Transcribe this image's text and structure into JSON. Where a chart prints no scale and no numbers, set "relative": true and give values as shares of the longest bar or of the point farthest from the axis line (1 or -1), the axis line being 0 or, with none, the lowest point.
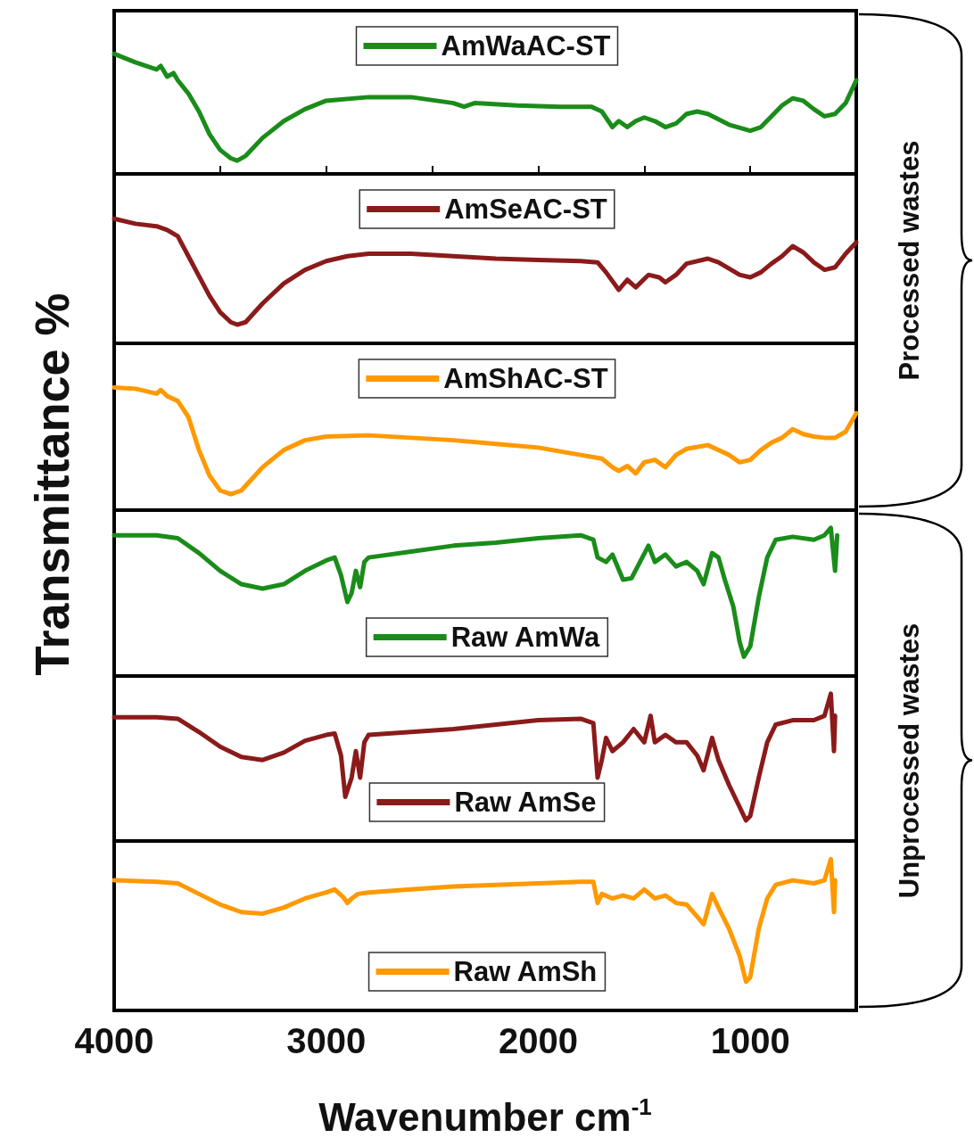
{
  "chart_data": [
    {
      "type": "line",
      "relative": true,
      "ylabel": "Transmittance %",
      "legend": "top",
      "tick_labels": false,
      "xlim": [
        4000,
        500
      ],
      "xticks": [
        {
          "value": 3500,
          "label": null
        },
        {
          "value": 3000,
          "label": null
        },
        {
          "value": 2500,
          "label": null
        },
        {
          "value": 2000,
          "label": null
        },
        {
          "value": 1500,
          "label": null
        },
        {
          "value": 1000,
          "label": null
        }
      ],
      "x": [
        4000,
        3900,
        3800,
        3780,
        3750,
        3720,
        3700,
        3650,
        3600,
        3550,
        3500,
        3450,
        3420,
        3380,
        3300,
        3200,
        3100,
        3000,
        2800,
        2600,
        2400,
        2350,
        2300,
        2100,
        1900,
        1750,
        1700,
        1650,
        1620,
        1580,
        1540,
        1500,
        1450,
        1400,
        1350,
        1300,
        1250,
        1200,
        1100,
        1000,
        950,
        900,
        850,
        800,
        750,
        700,
        650,
        600,
        550,
        500
      ],
      "series": [
        {
          "name": "AmWaAC-ST",
          "color": "#1a8c1a",
          "values": [
            1.0,
            0.93,
            0.87,
            0.9,
            0.81,
            0.84,
            0.78,
            0.67,
            0.52,
            0.33,
            0.2,
            0.13,
            0.11,
            0.15,
            0.3,
            0.44,
            0.54,
            0.61,
            0.64,
            0.64,
            0.59,
            0.56,
            0.59,
            0.57,
            0.56,
            0.56,
            0.52,
            0.39,
            0.44,
            0.39,
            0.44,
            0.47,
            0.44,
            0.39,
            0.42,
            0.5,
            0.52,
            0.5,
            0.41,
            0.36,
            0.39,
            0.48,
            0.57,
            0.63,
            0.61,
            0.54,
            0.48,
            0.5,
            0.59,
            0.78
          ]
        }
      ]
    },
    {
      "type": "line",
      "relative": true,
      "legend": "top",
      "tick_labels": false,
      "xlim": [
        4000,
        500
      ],
      "annotations": [
        "Processed wastes"
      ],
      "x": [
        4000,
        3900,
        3800,
        3750,
        3700,
        3650,
        3600,
        3550,
        3500,
        3450,
        3420,
        3380,
        3300,
        3200,
        3100,
        3000,
        2900,
        2800,
        2600,
        2400,
        2200,
        2000,
        1800,
        1720,
        1680,
        1620,
        1580,
        1540,
        1480,
        1430,
        1400,
        1350,
        1300,
        1200,
        1150,
        1050,
        1000,
        950,
        900,
        850,
        800,
        750,
        700,
        650,
        600,
        550,
        500
      ],
      "series": [
        {
          "name": "AmSeAC-ST",
          "color": "#8b1a1a",
          "values": [
            1.0,
            0.96,
            0.94,
            0.91,
            0.86,
            0.7,
            0.54,
            0.38,
            0.25,
            0.17,
            0.15,
            0.17,
            0.32,
            0.48,
            0.59,
            0.66,
            0.7,
            0.72,
            0.72,
            0.7,
            0.68,
            0.67,
            0.66,
            0.65,
            0.57,
            0.43,
            0.51,
            0.45,
            0.55,
            0.53,
            0.49,
            0.55,
            0.64,
            0.68,
            0.65,
            0.55,
            0.53,
            0.57,
            0.64,
            0.7,
            0.78,
            0.73,
            0.65,
            0.59,
            0.61,
            0.72,
            0.81
          ]
        }
      ]
    },
    {
      "type": "line",
      "relative": true,
      "legend": "top",
      "tick_labels": false,
      "xlim": [
        4000,
        500
      ],
      "x": [
        4000,
        3900,
        3850,
        3800,
        3780,
        3750,
        3700,
        3650,
        3600,
        3550,
        3500,
        3450,
        3400,
        3300,
        3200,
        3100,
        3000,
        2800,
        2600,
        2400,
        2200,
        2000,
        1800,
        1700,
        1650,
        1620,
        1580,
        1540,
        1500,
        1450,
        1400,
        1350,
        1300,
        1200,
        1100,
        1050,
        1000,
        950,
        900,
        850,
        800,
        750,
        700,
        650,
        600,
        550,
        500
      ],
      "series": [
        {
          "name": "AmShAC-ST",
          "color": "#ff9900",
          "values": [
            1.0,
            0.99,
            0.97,
            0.95,
            0.98,
            0.93,
            0.89,
            0.76,
            0.49,
            0.28,
            0.16,
            0.13,
            0.16,
            0.35,
            0.49,
            0.57,
            0.6,
            0.61,
            0.59,
            0.57,
            0.54,
            0.51,
            0.45,
            0.42,
            0.35,
            0.32,
            0.36,
            0.3,
            0.39,
            0.41,
            0.35,
            0.45,
            0.5,
            0.53,
            0.45,
            0.39,
            0.41,
            0.49,
            0.55,
            0.59,
            0.66,
            0.62,
            0.6,
            0.59,
            0.59,
            0.64,
            0.79
          ]
        }
      ]
    },
    {
      "type": "line",
      "relative": true,
      "legend": "bottom",
      "tick_labels": false,
      "xlim": [
        4000,
        500
      ],
      "x": [
        4000,
        3800,
        3700,
        3600,
        3500,
        3400,
        3300,
        3200,
        3100,
        3000,
        2960,
        2930,
        2900,
        2880,
        2860,
        2840,
        2820,
        2800,
        2600,
        2400,
        2200,
        2000,
        1800,
        1740,
        1720,
        1680,
        1650,
        1600,
        1560,
        1520,
        1480,
        1450,
        1400,
        1350,
        1300,
        1250,
        1220,
        1180,
        1150,
        1120,
        1080,
        1050,
        1030,
        1000,
        960,
        920,
        880,
        800,
        700,
        650,
        620,
        600,
        590
      ],
      "series": [
        {
          "name": "Raw AmWa",
          "color": "#1a8c1a",
          "values": [
            0.95,
            0.95,
            0.93,
            0.83,
            0.71,
            0.62,
            0.59,
            0.62,
            0.71,
            0.78,
            0.8,
            0.68,
            0.5,
            0.56,
            0.71,
            0.6,
            0.77,
            0.8,
            0.84,
            0.88,
            0.9,
            0.93,
            0.95,
            0.92,
            0.8,
            0.77,
            0.82,
            0.65,
            0.66,
            0.77,
            0.88,
            0.77,
            0.82,
            0.74,
            0.77,
            0.71,
            0.62,
            0.83,
            0.8,
            0.65,
            0.47,
            0.23,
            0.13,
            0.2,
            0.53,
            0.8,
            0.92,
            0.94,
            0.92,
            0.95,
            1.0,
            0.71,
            0.95
          ]
        }
      ]
    },
    {
      "type": "line",
      "relative": true,
      "legend": "bottom",
      "tick_labels": false,
      "xlim": [
        4000,
        500
      ],
      "annotations": [
        "Unprocessed wastes"
      ],
      "x": [
        4000,
        3800,
        3700,
        3600,
        3500,
        3400,
        3300,
        3200,
        3100,
        3000,
        2960,
        2930,
        2910,
        2880,
        2860,
        2840,
        2820,
        2800,
        2600,
        2400,
        2200,
        2000,
        1800,
        1740,
        1720,
        1700,
        1680,
        1650,
        1600,
        1550,
        1500,
        1470,
        1450,
        1400,
        1350,
        1300,
        1250,
        1220,
        1180,
        1150,
        1100,
        1050,
        1020,
        1000,
        960,
        920,
        880,
        800,
        700,
        650,
        620,
        605,
        600
      ],
      "series": [
        {
          "name": "Raw AmSe",
          "color": "#8b1a1a",
          "values": [
            0.84,
            0.84,
            0.83,
            0.74,
            0.64,
            0.57,
            0.55,
            0.6,
            0.68,
            0.72,
            0.73,
            0.58,
            0.3,
            0.43,
            0.61,
            0.43,
            0.67,
            0.72,
            0.74,
            0.76,
            0.79,
            0.82,
            0.83,
            0.8,
            0.43,
            0.55,
            0.7,
            0.61,
            0.67,
            0.76,
            0.67,
            0.85,
            0.67,
            0.72,
            0.67,
            0.67,
            0.58,
            0.48,
            0.7,
            0.55,
            0.38,
            0.23,
            0.14,
            0.17,
            0.43,
            0.67,
            0.79,
            0.82,
            0.82,
            0.85,
            1.0,
            0.61,
            0.85
          ]
        }
      ]
    },
    {
      "type": "line",
      "relative": true,
      "legend": "bottom",
      "tick_labels": "x",
      "xlim": [
        4000,
        500
      ],
      "xticks": [
        4000,
        3000,
        2000,
        1000
      ],
      "xlabel": "Wavenumber cm$^{-1}$",
      "x": [
        4000,
        3800,
        3700,
        3600,
        3500,
        3400,
        3300,
        3200,
        3100,
        3000,
        2960,
        2920,
        2900,
        2880,
        2850,
        2800,
        2600,
        2400,
        2200,
        2000,
        1800,
        1740,
        1720,
        1700,
        1650,
        1600,
        1550,
        1500,
        1450,
        1400,
        1350,
        1300,
        1250,
        1220,
        1180,
        1150,
        1100,
        1050,
        1020,
        1000,
        960,
        920,
        880,
        800,
        700,
        650,
        620,
        605,
        600
      ],
      "series": [
        {
          "name": "Raw AmSh",
          "color": "#ff9900",
          "values": [
            0.86,
            0.85,
            0.84,
            0.77,
            0.7,
            0.65,
            0.64,
            0.68,
            0.74,
            0.78,
            0.8,
            0.75,
            0.71,
            0.74,
            0.77,
            0.78,
            0.8,
            0.82,
            0.83,
            0.84,
            0.85,
            0.85,
            0.71,
            0.77,
            0.74,
            0.76,
            0.74,
            0.8,
            0.74,
            0.76,
            0.71,
            0.7,
            0.62,
            0.57,
            0.77,
            0.68,
            0.54,
            0.36,
            0.19,
            0.22,
            0.54,
            0.74,
            0.83,
            0.86,
            0.84,
            0.86,
            1.0,
            0.65,
            0.86
          ]
        }
      ]
    }
  ]
}
